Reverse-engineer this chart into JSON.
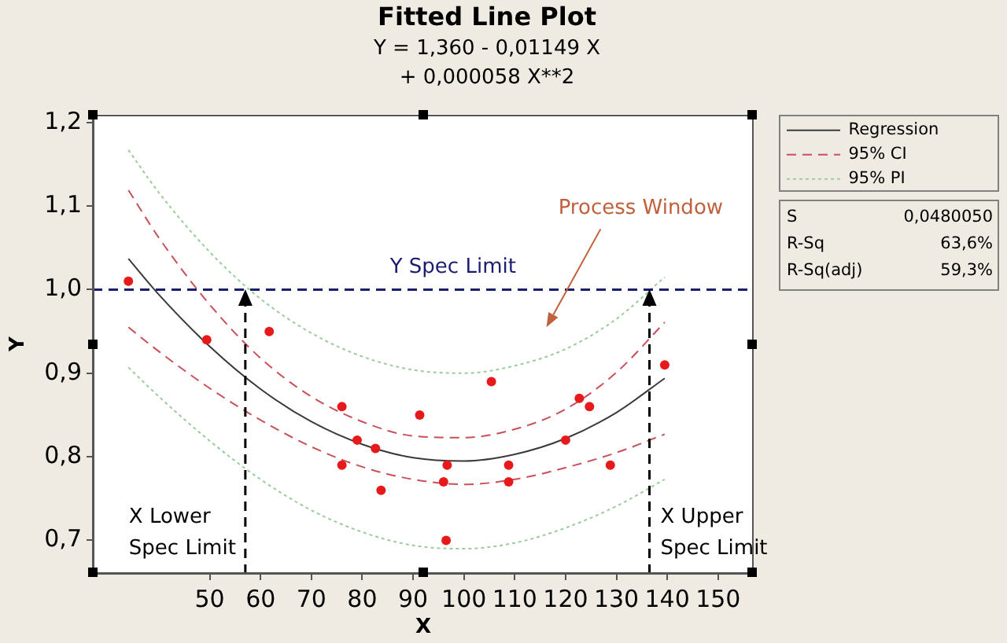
{
  "chart_data": {
    "type": "scatter",
    "title": "Fitted Line Plot",
    "subtitle": "Y = 1,360 - 0,01149 X\n+ 0,000058 X**2",
    "xlabel": "X",
    "ylabel": "Y",
    "xlim": [
      27,
      157
    ],
    "ylim": [
      0.66,
      1.21
    ],
    "xticks": [
      50,
      60,
      70,
      80,
      90,
      100,
      110,
      120,
      130,
      140,
      150
    ],
    "yticks": [
      {
        "value": 0.7,
        "label": "0,7"
      },
      {
        "value": 0.8,
        "label": "0,8"
      },
      {
        "value": 0.9,
        "label": "0,9"
      },
      {
        "value": 1.0,
        "label": "1,0"
      },
      {
        "value": 1.1,
        "label": "1,1"
      },
      {
        "value": 1.2,
        "label": "1,2"
      }
    ],
    "grid": false,
    "legend": "right",
    "series": [
      {
        "type": "scatter",
        "color": "#e8191a",
        "marker": "circle",
        "x": [
          34,
          49.4,
          61.7,
          76,
          76,
          79,
          82.6,
          83.7,
          91.3,
          96,
          96.5,
          96.7,
          105.4,
          108.8,
          108.8,
          120,
          122.7,
          124.7,
          128.8,
          139.5
        ],
        "values": [
          1.01,
          0.94,
          0.95,
          0.86,
          0.79,
          0.82,
          0.81,
          0.76,
          0.85,
          0.77,
          0.7,
          0.79,
          0.89,
          0.79,
          0.77,
          0.82,
          0.87,
          0.86,
          0.79,
          0.91
        ]
      },
      {
        "name": "Regression",
        "type": "line",
        "color": "#3a3a3a",
        "line_style": "solid",
        "marker": "none",
        "x": [
          34,
          40,
          50,
          60,
          70,
          80,
          90,
          100,
          110,
          120,
          130,
          139.5
        ],
        "values": [
          1.037,
          0.994,
          0.932,
          0.881,
          0.842,
          0.815,
          0.799,
          0.795,
          0.803,
          0.822,
          0.853,
          0.894
        ]
      },
      {
        "name": "95% CI",
        "type": "line",
        "color": "#c8505a",
        "line_style": "dashed",
        "marker": "none",
        "x": [
          34,
          40,
          50,
          60,
          70,
          80,
          90,
          100,
          110,
          120,
          130,
          139.5
        ],
        "values": [
          1.119,
          1.062,
          0.982,
          0.918,
          0.872,
          0.842,
          0.825,
          0.823,
          0.833,
          0.857,
          0.901,
          0.961
        ]
      },
      {
        "type": "line",
        "color": "#c8505a",
        "line_style": "dashed",
        "marker": "none",
        "x": [
          34,
          40,
          50,
          60,
          70,
          80,
          90,
          100,
          110,
          120,
          130,
          139.5
        ],
        "values": [
          0.955,
          0.926,
          0.882,
          0.844,
          0.812,
          0.788,
          0.773,
          0.767,
          0.773,
          0.787,
          0.805,
          0.827
        ]
      },
      {
        "name": "95% PI",
        "type": "line",
        "color": "#9ccb9c",
        "line_style": "dotted",
        "marker": "none",
        "x": [
          34,
          40,
          50,
          60,
          70,
          80,
          90,
          100,
          110,
          120,
          130,
          139.5
        ],
        "values": [
          1.167,
          1.116,
          1.045,
          0.989,
          0.948,
          0.92,
          0.904,
          0.9,
          0.909,
          0.929,
          0.965,
          1.015
        ]
      },
      {
        "type": "line",
        "color": "#9ccb9c",
        "line_style": "dotted",
        "marker": "none",
        "x": [
          34,
          40,
          50,
          60,
          70,
          80,
          90,
          100,
          110,
          120,
          130,
          139.5
        ],
        "values": [
          0.907,
          0.872,
          0.819,
          0.773,
          0.736,
          0.71,
          0.694,
          0.69,
          0.697,
          0.715,
          0.741,
          0.773
        ]
      }
    ],
    "ref_lines": [
      {
        "axis": "y",
        "value": 1.0,
        "label": "Y Spec Limit",
        "color": "#1c1c6e",
        "line_style": "dashed"
      },
      {
        "axis": "x",
        "value": 57,
        "label": "X Lower\nSpec Limit",
        "color": "#000000",
        "line_style": "dashed"
      },
      {
        "axis": "x",
        "value": 136.5,
        "label": "X Upper\nSpec Limit",
        "color": "#000000",
        "line_style": "dashed"
      }
    ],
    "annotations": [
      "Process Window",
      "S 0,0480050",
      "R-Sq 63,6%",
      "R-Sq(adj) 59,3%"
    ]
  }
}
